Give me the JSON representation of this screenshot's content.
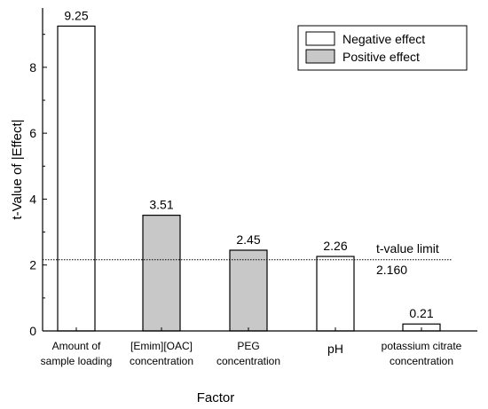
{
  "chart_data": {
    "type": "bar",
    "title": "",
    "xlabel": "Factor",
    "ylabel": "t-Value of |Effect|",
    "ylim": [
      0,
      9.8
    ],
    "yticks": [
      0,
      2,
      4,
      6,
      8
    ],
    "yminor_step": 1,
    "grid": false,
    "legend_placement": "top-right",
    "categories": [
      [
        "Amount of",
        "sample loading"
      ],
      [
        "[Emim][OAC]",
        "concentration"
      ],
      [
        "PEG",
        "concentration"
      ],
      [
        "pH"
      ],
      [
        "potassium citrate",
        "concentration"
      ]
    ],
    "values": [
      9.25,
      3.51,
      2.45,
      2.26,
      0.21
    ],
    "value_labels": [
      "9.25",
      "3.51",
      "2.45",
      "2.26",
      "0.21"
    ],
    "effects": [
      "negative",
      "positive",
      "positive",
      "negative",
      "negative"
    ],
    "legend": [
      {
        "key": "negative",
        "label": "Negative effect",
        "color": "#ffffff"
      },
      {
        "key": "positive",
        "label": "Positive effect",
        "color": "#c8c8c8"
      }
    ],
    "reference_line": {
      "value": 2.16,
      "label": "t-value limit",
      "value_label": "2.160"
    }
  }
}
